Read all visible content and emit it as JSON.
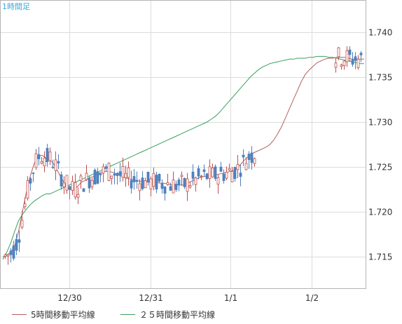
{
  "chart_data": {
    "type": "candlestick",
    "title": "1時間足",
    "x_ticks": [
      "12/30",
      "12/31",
      "1/1",
      "1/2"
    ],
    "y_ticks": [
      "1.715",
      "1.720",
      "1.725",
      "1.730",
      "1.735",
      "1.740"
    ],
    "ylim": [
      1.7115,
      1.7435
    ],
    "grid": true,
    "legend_position": "bottom",
    "series": [
      {
        "name": "5時間移動平均線",
        "color": "#b06060",
        "values": [
          1.715,
          1.7152,
          1.7155,
          1.7162,
          1.7178,
          1.72,
          1.7222,
          1.724,
          1.7254,
          1.7262,
          1.7263,
          1.726,
          1.7258,
          1.7253,
          1.7245,
          1.7237,
          1.723,
          1.7225,
          1.7225,
          1.7228,
          1.7233,
          1.7235,
          1.7238,
          1.7239,
          1.7242,
          1.7244,
          1.7245,
          1.7245,
          1.7244,
          1.7242,
          1.724,
          1.7238,
          1.7237,
          1.7236,
          1.7235,
          1.7234,
          1.7234,
          1.7233,
          1.7233,
          1.7233,
          1.7232,
          1.7232,
          1.7231,
          1.723,
          1.723,
          1.723,
          1.723,
          1.7232,
          1.7234,
          1.7236,
          1.7238,
          1.7239,
          1.724,
          1.724,
          1.7241,
          1.7242,
          1.7243,
          1.7244,
          1.7245,
          1.7247,
          1.725,
          1.7255,
          1.726,
          1.7263,
          1.7266,
          1.7268,
          1.727,
          1.7272,
          1.7275,
          1.728,
          1.7287,
          1.7295,
          1.7305,
          1.7315,
          1.7325,
          1.7335,
          1.7345,
          1.7353,
          1.7358,
          1.7362,
          1.7366,
          1.7368,
          1.737,
          1.7371,
          1.7371,
          1.7372,
          1.7372,
          1.7372,
          1.7371,
          1.737,
          1.737,
          1.737,
          1.737
        ]
      },
      {
        "name": "２５時間移動平均線",
        "color": "#3aa060",
        "values": [
          1.7147,
          1.7155,
          1.7165,
          1.7178,
          1.719,
          1.7197,
          1.7203,
          1.7208,
          1.7212,
          1.7215,
          1.7218,
          1.722,
          1.722,
          1.7222,
          1.7224,
          1.7226,
          1.7228,
          1.723,
          1.7232,
          1.7234,
          1.7236,
          1.7238,
          1.724,
          1.7242,
          1.7244,
          1.7246,
          1.7248,
          1.725,
          1.7252,
          1.7254,
          1.7256,
          1.7258,
          1.726,
          1.7262,
          1.7264,
          1.7266,
          1.7268,
          1.727,
          1.7272,
          1.7274,
          1.7276,
          1.7278,
          1.728,
          1.7282,
          1.7284,
          1.7286,
          1.7288,
          1.729,
          1.7292,
          1.7294,
          1.7296,
          1.7298,
          1.73,
          1.7303,
          1.7306,
          1.731,
          1.7315,
          1.732,
          1.7325,
          1.733,
          1.7335,
          1.734,
          1.7345,
          1.735,
          1.7354,
          1.7358,
          1.7361,
          1.7363,
          1.7365,
          1.7366,
          1.7367,
          1.7368,
          1.7369,
          1.737,
          1.737,
          1.7371,
          1.7371,
          1.7371,
          1.7372,
          1.7372,
          1.7373,
          1.7373,
          1.7373,
          1.7372,
          1.7372,
          1.7371,
          1.737,
          1.7369,
          1.7368,
          1.7367,
          1.7366,
          1.7365,
          1.7365
        ]
      }
    ],
    "colors": {
      "up": "#c0504d",
      "down": "#4f81bd",
      "title": "#33aadd"
    }
  }
}
